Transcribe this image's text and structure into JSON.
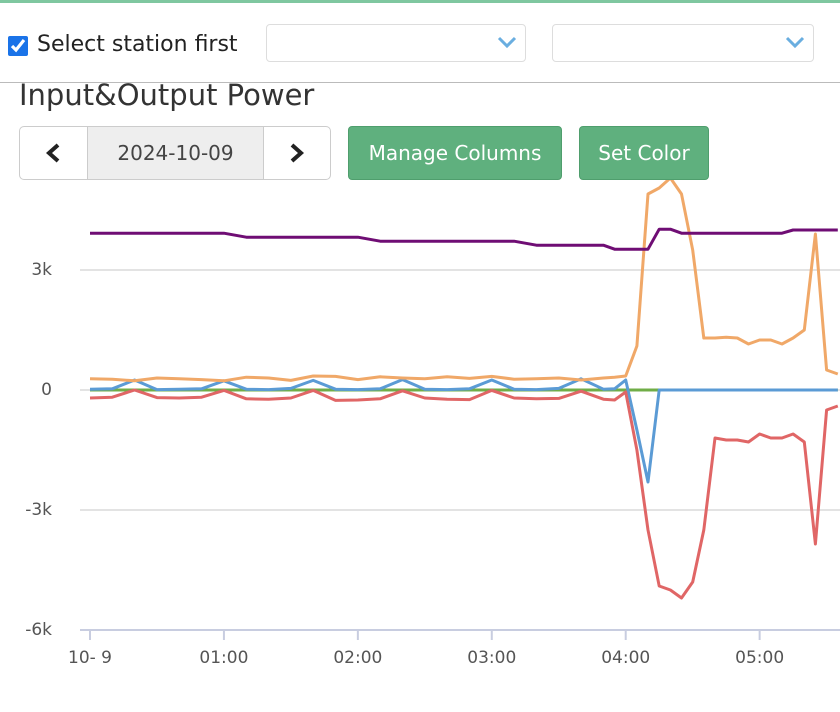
{
  "ui": {
    "checkbox_label": "Select station first",
    "section_title": "Input&Output Power",
    "date": "2024-10-09",
    "buttons": [
      "Manage Columns",
      "Set Color"
    ]
  },
  "chart_data": {
    "type": "line",
    "x": [
      0,
      10,
      20,
      30,
      40,
      50,
      60,
      70,
      80,
      90,
      100,
      110,
      120,
      130,
      140,
      150,
      160,
      170,
      180,
      190,
      200,
      210,
      220,
      230,
      235,
      240,
      245,
      250,
      255,
      260,
      265,
      270,
      275,
      280,
      285,
      290,
      295,
      300,
      305,
      310,
      315,
      320,
      325,
      330,
      335
    ],
    "series": [
      {
        "color": "#70ad47",
        "values": [
          0,
          0,
          0,
          0,
          0,
          0,
          0,
          0,
          0,
          0,
          0,
          0,
          0,
          0,
          0,
          0,
          0,
          0,
          0,
          0,
          0,
          0,
          0,
          0,
          0,
          0,
          0,
          0,
          0,
          0,
          0,
          0,
          0,
          0,
          0,
          0,
          0,
          0,
          0,
          0,
          0,
          0,
          0,
          0,
          0
        ]
      },
      {
        "color": "#5b9bd5",
        "values": [
          20,
          30,
          250,
          10,
          20,
          30,
          230,
          20,
          10,
          40,
          240,
          20,
          10,
          30,
          260,
          20,
          10,
          30,
          250,
          20,
          10,
          40,
          280,
          20,
          30,
          250,
          -1000,
          -2300,
          0,
          0,
          0,
          0,
          0,
          0,
          0,
          0,
          0,
          0,
          0,
          0,
          0,
          0,
          0,
          0,
          0
        ]
      },
      {
        "color": "#e06666",
        "values": [
          -200,
          -180,
          0,
          -190,
          -200,
          -180,
          -10,
          -220,
          -230,
          -200,
          -10,
          -260,
          -250,
          -220,
          -20,
          -200,
          -230,
          -240,
          -10,
          -200,
          -220,
          -210,
          -30,
          -230,
          -250,
          -50,
          -1500,
          -3500,
          -4900,
          -5000,
          -5200,
          -4800,
          -3500,
          -1200,
          -1250,
          -1250,
          -1300,
          -1100,
          -1200,
          -1200,
          -1100,
          -1300,
          -3850,
          -500,
          -400
        ]
      },
      {
        "color": "#f0a868",
        "values": [
          280,
          270,
          230,
          300,
          280,
          260,
          230,
          320,
          300,
          240,
          350,
          340,
          260,
          330,
          300,
          280,
          330,
          290,
          340,
          270,
          280,
          300,
          250,
          300,
          320,
          350,
          1100,
          4900,
          5050,
          5300,
          4900,
          3500,
          1300,
          1300,
          1320,
          1300,
          1150,
          1250,
          1250,
          1150,
          1300,
          1500,
          3900,
          500,
          400
        ]
      },
      {
        "color": "#6f0d74",
        "values": [
          3920,
          3920,
          3920,
          3920,
          3920,
          3920,
          3920,
          3820,
          3820,
          3820,
          3820,
          3820,
          3820,
          3720,
          3720,
          3720,
          3720,
          3720,
          3720,
          3720,
          3620,
          3620,
          3620,
          3620,
          3520,
          3520,
          3520,
          3520,
          4020,
          4020,
          3920,
          3920,
          3920,
          3920,
          3920,
          3920,
          3920,
          3920,
          3920,
          3920,
          4000,
          4000,
          4000,
          4000,
          4000
        ]
      }
    ],
    "xlim": [
      0,
      336
    ],
    "xticks": [
      {
        "value": 0,
        "label": "10- 9"
      },
      {
        "value": 60,
        "label": "01:00"
      },
      {
        "value": 120,
        "label": "02:00"
      },
      {
        "value": 180,
        "label": "03:00"
      },
      {
        "value": 240,
        "label": "04:00"
      },
      {
        "value": 300,
        "label": "05:00"
      }
    ],
    "ylim": [
      -6000,
      5300
    ],
    "yticks": [
      {
        "value": 3000,
        "label": "3k"
      },
      0,
      {
        "value": -3000,
        "label": "-3k"
      },
      {
        "value": -6000,
        "label": "-6k"
      }
    ],
    "grid": true
  }
}
